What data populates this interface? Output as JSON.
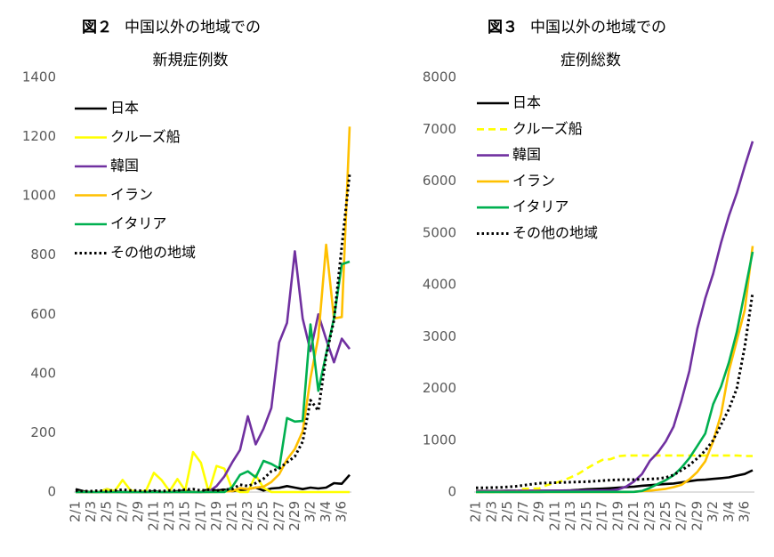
{
  "chart_data": [
    {
      "type": "line",
      "figure": "図２",
      "title_lines": [
        "中国以外の地域での",
        "新規症例数"
      ],
      "categories": [
        "2/1",
        null,
        "2/3",
        null,
        "2/5",
        null,
        "2/7",
        null,
        "2/9",
        null,
        "2/11",
        null,
        "2/13",
        null,
        "2/15",
        null,
        "2/17",
        null,
        "2/19",
        null,
        "2/21",
        null,
        "2/23",
        null,
        "2/25",
        null,
        "2/27",
        null,
        "2/29",
        null,
        "3/2",
        null,
        "3/4",
        null,
        "3/6",
        null
      ],
      "ylim": [
        0,
        1400
      ],
      "yticks": [
        0,
        200,
        400,
        600,
        800,
        1000,
        1200,
        1400
      ],
      "grid": false,
      "legend": "upper-left",
      "series": [
        {
          "name": "日本",
          "color": "#000000",
          "line_style": "solid",
          "values": [
            10,
            3,
            0,
            0,
            10,
            3,
            0,
            0,
            0,
            0,
            3,
            0,
            0,
            3,
            5,
            0,
            0,
            10,
            5,
            8,
            3,
            5,
            10,
            15,
            5,
            12,
            14,
            20,
            15,
            10,
            15,
            12,
            15,
            30,
            28,
            58
          ]
        },
        {
          "name": "クルーズ船",
          "color": "#ffff00",
          "line_style": "solid",
          "values": [
            0,
            0,
            0,
            0,
            10,
            3,
            41,
            6,
            0,
            5,
            65,
            40,
            3,
            44,
            5,
            135,
            99,
            0,
            88,
            79,
            10,
            0,
            0,
            57,
            14,
            0,
            0,
            0,
            0,
            0,
            0,
            0,
            0,
            0,
            0,
            0
          ]
        },
        {
          "name": "韓国",
          "color": "#7030a0",
          "line_style": "solid",
          "values": [
            0,
            0,
            0,
            0,
            0,
            0,
            0,
            0,
            0,
            0,
            0,
            0,
            0,
            0,
            0,
            0,
            0,
            1,
            20,
            53,
            100,
            142,
            256,
            161,
            214,
            284,
            505,
            571,
            813,
            586,
            476,
            600,
            516,
            438,
            518,
            483
          ]
        },
        {
          "name": "イラン",
          "color": "#ffc000",
          "line_style": "solid",
          "values": [
            0,
            0,
            0,
            0,
            0,
            0,
            0,
            0,
            0,
            0,
            0,
            0,
            0,
            0,
            0,
            0,
            0,
            0,
            0,
            2,
            3,
            13,
            10,
            15,
            18,
            34,
            60,
            110,
            145,
            205,
            385,
            523,
            835,
            586,
            591,
            1234
          ]
        },
        {
          "name": "イタリア",
          "color": "#00b050",
          "line_style": "solid",
          "values": [
            0,
            0,
            0,
            0,
            0,
            0,
            0,
            0,
            0,
            0,
            0,
            0,
            0,
            0,
            0,
            0,
            0,
            0,
            0,
            0,
            17,
            58,
            70,
            50,
            105,
            95,
            80,
            250,
            238,
            240,
            566,
            342,
            466,
            587,
            769,
            778
          ]
        },
        {
          "name": "その他の地域",
          "color": "#000000",
          "line_style": "dotted",
          "values": [
            5,
            3,
            3,
            5,
            3,
            5,
            8,
            5,
            5,
            3,
            5,
            3,
            5,
            5,
            8,
            10,
            5,
            8,
            5,
            8,
            10,
            25,
            20,
            30,
            45,
            70,
            80,
            100,
            120,
            170,
            310,
            275,
            460,
            580,
            830,
            1075
          ]
        }
      ]
    },
    {
      "type": "line",
      "figure": "図３",
      "title_lines": [
        "中国以外の地域での",
        "症例総数"
      ],
      "categories": [
        "2/1",
        null,
        "2/3",
        null,
        "2/5",
        null,
        "2/7",
        null,
        "2/9",
        null,
        "2/11",
        null,
        "2/13",
        null,
        "2/15",
        null,
        "2/17",
        null,
        "2/19",
        null,
        "2/21",
        null,
        "2/23",
        null,
        "2/25",
        null,
        "2/27",
        null,
        "2/29",
        null,
        "3/2",
        null,
        "3/4",
        null,
        "3/6",
        null
      ],
      "ylim": [
        0,
        8000
      ],
      "yticks": [
        0,
        1000,
        2000,
        3000,
        4000,
        5000,
        6000,
        7000,
        8000
      ],
      "grid": false,
      "legend": "upper-left",
      "series": [
        {
          "name": "日本",
          "color": "#000000",
          "line_style": "solid",
          "values": [
            20,
            20,
            20,
            20,
            25,
            25,
            25,
            25,
            25,
            26,
            28,
            29,
            33,
            41,
            53,
            59,
            66,
            73,
            84,
            94,
            105,
            122,
            132,
            144,
            156,
            164,
            186,
            210,
            230,
            239,
            254,
            268,
            284,
            317,
            349,
            420
          ]
        },
        {
          "name": "クルーズ船",
          "color": "#ffff00",
          "line_style": "dashed",
          "values": [
            0,
            0,
            0,
            0,
            10,
            20,
            61,
            64,
            70,
            135,
            175,
            218,
            285,
            355,
            454,
            542,
            621,
            634,
            691,
            705,
            705,
            705,
            705,
            705,
            705,
            705,
            705,
            705,
            705,
            705,
            705,
            705,
            705,
            705,
            696,
            696
          ]
        },
        {
          "name": "韓国",
          "color": "#7030a0",
          "line_style": "solid",
          "values": [
            12,
            15,
            15,
            16,
            19,
            23,
            24,
            24,
            25,
            27,
            28,
            28,
            28,
            28,
            29,
            30,
            31,
            31,
            51,
            104,
            204,
            346,
            602,
            763,
            977,
            1261,
            1766,
            2337,
            3150,
            3736,
            4212,
            4812,
            5328,
            5766,
            6284,
            6767
          ]
        },
        {
          "name": "イラン",
          "color": "#ffc000",
          "line_style": "solid",
          "values": [
            0,
            0,
            0,
            0,
            0,
            0,
            0,
            0,
            0,
            0,
            0,
            0,
            0,
            0,
            0,
            0,
            0,
            0,
            0,
            2,
            5,
            18,
            28,
            43,
            61,
            95,
            139,
            245,
            388,
            593,
            978,
            1501,
            2336,
            2922,
            3513,
            4747
          ]
        },
        {
          "name": "イタリア",
          "color": "#00b050",
          "line_style": "solid",
          "values": [
            0,
            0,
            0,
            0,
            0,
            0,
            0,
            0,
            2,
            3,
            3,
            3,
            3,
            3,
            3,
            3,
            3,
            3,
            3,
            3,
            3,
            20,
            79,
            157,
            229,
            323,
            470,
            655,
            889,
            1128,
            1694,
            2036,
            2502,
            3089,
            3858,
            4636
          ]
        },
        {
          "name": "その他の地域",
          "color": "#000000",
          "line_style": "dotted",
          "values": [
            80,
            80,
            85,
            90,
            100,
            110,
            130,
            150,
            170,
            175,
            180,
            185,
            190,
            195,
            200,
            210,
            220,
            230,
            235,
            240,
            240,
            245,
            250,
            260,
            280,
            330,
            420,
            520,
            650,
            800,
            1000,
            1300,
            1600,
            2000,
            2800,
            3850
          ]
        }
      ]
    }
  ]
}
